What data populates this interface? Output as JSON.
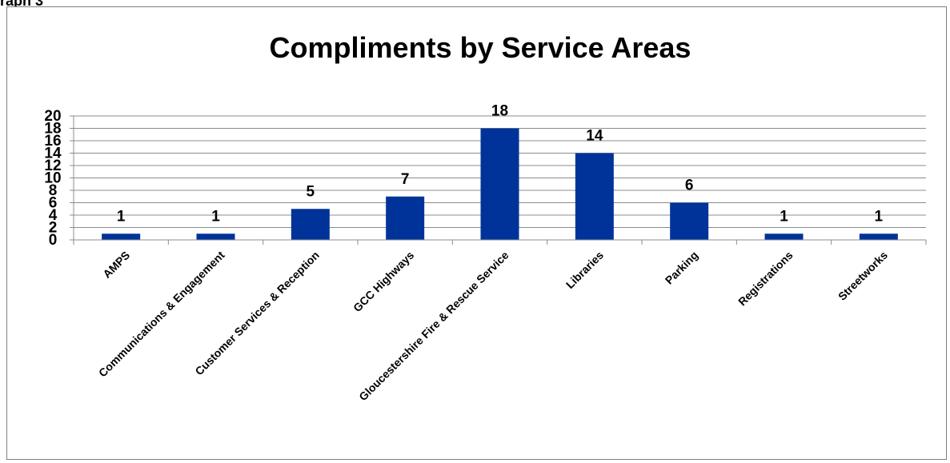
{
  "page": {
    "caption": "raph 3"
  },
  "chart_data": {
    "type": "bar",
    "title": "Compliments by Service Areas",
    "xlabel": "",
    "ylabel": "",
    "ylim": [
      0,
      20
    ],
    "yticks": [
      "0",
      "2",
      "4",
      "6",
      "8",
      "10",
      "12",
      "14",
      "16",
      "18",
      "20"
    ],
    "grid": true,
    "legend": "none",
    "bar_color": "#003399",
    "categories": [
      "AMPS",
      "Communications & Engagement",
      "Customer Services & Reception",
      "GCC Highways",
      "Gloucestershire Fire & Rescue Service",
      "Libraries",
      "Parking",
      "Registrations",
      "Streetworks"
    ],
    "values": [
      1,
      1,
      5,
      7,
      18,
      14,
      6,
      1,
      1
    ],
    "data_labels": [
      "1",
      "1",
      "5",
      "7",
      "18",
      "14",
      "6",
      "1",
      "1"
    ]
  }
}
